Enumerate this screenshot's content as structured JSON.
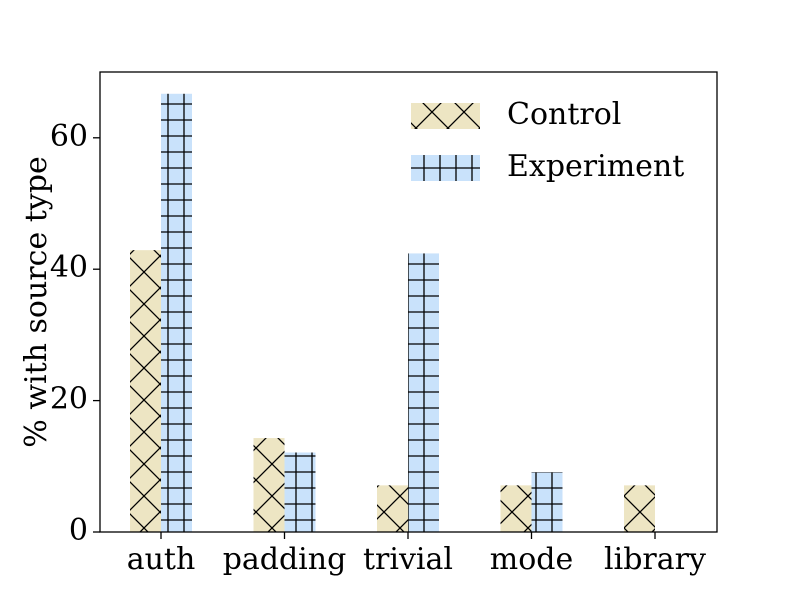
{
  "chart_data": {
    "type": "bar",
    "title": "",
    "xlabel": "",
    "ylabel": "% with source type",
    "categories": [
      "auth",
      "padding",
      "trivial",
      "mode",
      "library"
    ],
    "series": [
      {
        "name": "Control",
        "values": [
          42.9,
          14.3,
          7.1,
          7.1,
          7.1
        ],
        "color": "#ede5c3",
        "hatch": "x"
      },
      {
        "name": "Experiment",
        "values": [
          66.7,
          12.1,
          42.4,
          9.1,
          0
        ],
        "color": "#c9e2fb",
        "hatch": "+"
      }
    ],
    "ylim": [
      0,
      70
    ],
    "yticks": [
      0,
      20,
      40,
      60
    ],
    "grid": false,
    "legend": "top-right"
  }
}
